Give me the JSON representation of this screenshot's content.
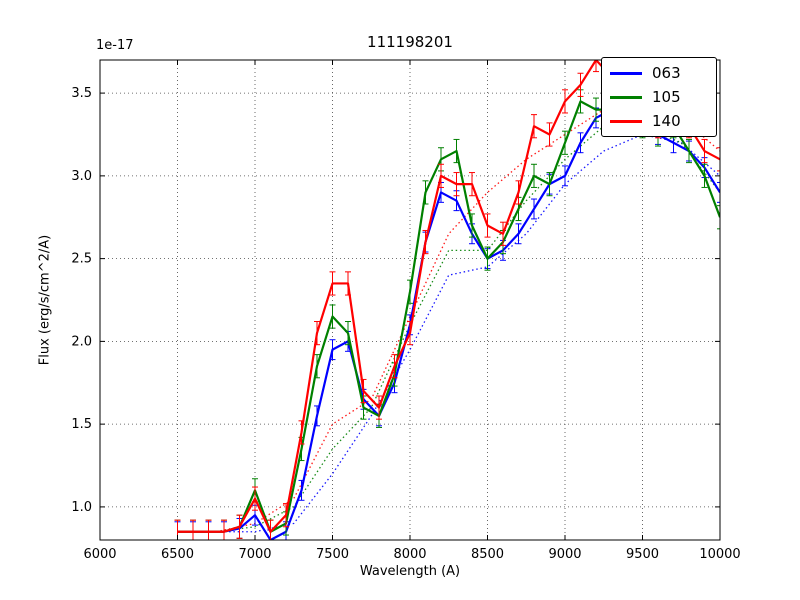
{
  "chart_data": {
    "type": "line",
    "title": "111198201",
    "xlabel": "Wavelength (A)",
    "ylabel": "Flux (erg/s/cm^2/A)",
    "y_offset_label": "1e-17",
    "xlim": [
      6000,
      10000
    ],
    "ylim": [
      0.8,
      3.7
    ],
    "xticks": [
      6000,
      6500,
      7000,
      7500,
      8000,
      8500,
      9000,
      9500,
      10000
    ],
    "yticks": [
      1.0,
      1.5,
      2.0,
      2.5,
      3.0,
      3.5
    ],
    "grid": true,
    "grid_style": "dotted",
    "legend_position": "upper right",
    "x": [
      6500,
      6600,
      6700,
      6800,
      6900,
      7000,
      7100,
      7200,
      7300,
      7400,
      7500,
      7600,
      7700,
      7800,
      7900,
      8000,
      8100,
      8200,
      8300,
      8400,
      8500,
      8600,
      8700,
      8800,
      8900,
      9000,
      9100,
      9200,
      9300,
      9400,
      9500,
      9600,
      9700,
      9800,
      9900,
      10000
    ],
    "dotted_x": [
      6500,
      6750,
      7000,
      7250,
      7500,
      7750,
      8000,
      8250,
      8500,
      8750,
      9000,
      9250,
      9500,
      9750,
      10000
    ],
    "series": [
      {
        "name": "063",
        "color": "#0000ff",
        "yerr": 0.06,
        "y": [
          0.85,
          0.85,
          0.85,
          0.85,
          0.87,
          0.95,
          0.8,
          0.85,
          1.1,
          1.55,
          1.95,
          2.0,
          1.65,
          1.55,
          1.75,
          2.1,
          2.6,
          2.9,
          2.85,
          2.65,
          2.5,
          2.55,
          2.65,
          2.8,
          2.95,
          3.0,
          3.2,
          3.35,
          3.4,
          3.4,
          3.3,
          3.25,
          3.2,
          3.15,
          3.05,
          2.9
        ],
        "dotted_y": [
          0.85,
          0.85,
          0.85,
          0.9,
          1.2,
          1.55,
          1.95,
          2.4,
          2.45,
          2.65,
          2.95,
          3.15,
          3.25,
          3.2,
          3.0
        ]
      },
      {
        "name": "105",
        "color": "#008000",
        "yerr": 0.07,
        "y": [
          0.85,
          0.85,
          0.85,
          0.85,
          0.88,
          1.1,
          0.85,
          0.9,
          1.35,
          1.85,
          2.15,
          2.05,
          1.6,
          1.55,
          1.8,
          2.3,
          2.9,
          3.1,
          3.15,
          2.7,
          2.5,
          2.6,
          2.8,
          3.0,
          2.95,
          3.2,
          3.45,
          3.4,
          3.4,
          3.35,
          3.3,
          3.25,
          3.3,
          3.15,
          3.0,
          2.75
        ],
        "dotted_y": [
          0.85,
          0.85,
          0.88,
          1.0,
          1.35,
          1.6,
          2.1,
          2.55,
          2.55,
          2.85,
          3.1,
          3.3,
          3.3,
          3.2,
          2.9
        ]
      },
      {
        "name": "140",
        "color": "#ff0000",
        "yerr": 0.07,
        "y": [
          0.85,
          0.85,
          0.85,
          0.85,
          0.88,
          1.05,
          0.85,
          0.95,
          1.45,
          2.05,
          2.35,
          2.35,
          1.7,
          1.6,
          1.85,
          2.05,
          2.6,
          3.0,
          2.95,
          2.95,
          2.7,
          2.65,
          2.9,
          3.3,
          3.25,
          3.45,
          3.55,
          3.7,
          3.6,
          3.45,
          3.35,
          3.3,
          3.35,
          3.3,
          3.15,
          3.1
        ],
        "dotted_y": [
          0.85,
          0.85,
          0.9,
          1.05,
          1.5,
          1.65,
          2.15,
          2.65,
          2.9,
          3.1,
          3.25,
          3.4,
          3.4,
          3.35,
          3.15
        ]
      }
    ]
  }
}
